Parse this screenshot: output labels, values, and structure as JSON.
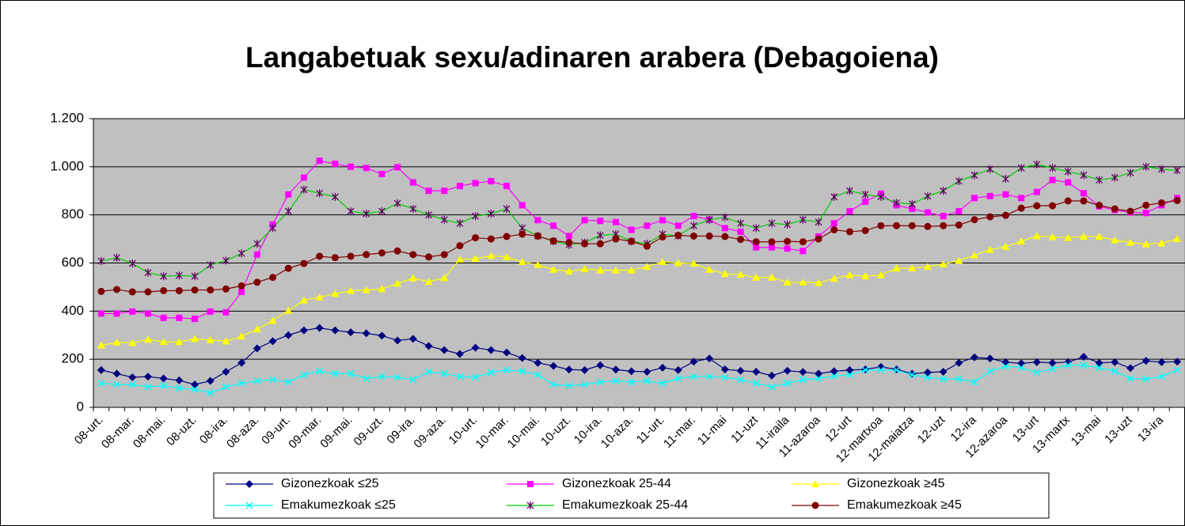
{
  "chart_data": {
    "type": "line",
    "title": "Langabetuak sexu/adinaren arabera (Debagoiena)",
    "categories": [
      "08-urt.",
      null,
      "08-mar.",
      null,
      "08-mai.",
      null,
      "08-uzt.",
      null,
      "08-ira.",
      null,
      "08-aza.",
      null,
      "09-urt.",
      null,
      "09-mar.",
      null,
      "09-mai.",
      null,
      "09-uzt.",
      null,
      "09-ira.",
      null,
      "09-aza.",
      null,
      "10-urt.",
      null,
      "10-mar.",
      null,
      "10-mai.",
      null,
      "10-uzt.",
      null,
      "10-ira.",
      null,
      "10-aza.",
      null,
      "11-urt.",
      null,
      "11-mar.",
      null,
      "11-mai",
      null,
      "11-uzt",
      null,
      "11-iraila",
      null,
      "11-azaroa",
      null,
      "12-urt",
      null,
      "12-martxoa",
      null,
      "12-maiatza",
      null,
      "12-uzt",
      null,
      "12-ira",
      null,
      "12-azaroa",
      null,
      "13-urt",
      null,
      "13-martx",
      null,
      "13-mai",
      null,
      "13-uzt",
      null,
      "13-ira",
      null
    ],
    "series": [
      {
        "name": "Gizonezkoak ≤25",
        "color": "#000080",
        "marker_color": "#000080",
        "marker": "diamond",
        "values": [
          155,
          140,
          125,
          128,
          120,
          112,
          95,
          110,
          148,
          185,
          245,
          275,
          300,
          320,
          330,
          320,
          312,
          308,
          298,
          278,
          285,
          255,
          238,
          222,
          248,
          238,
          228,
          205,
          185,
          172,
          157,
          155,
          175,
          157,
          150,
          148,
          165,
          155,
          190,
          203,
          158,
          152,
          148,
          132,
          152,
          147,
          140,
          150,
          155,
          158,
          168,
          158,
          140,
          145,
          148,
          185,
          208,
          203,
          188,
          183,
          188,
          185,
          188,
          210,
          185,
          188,
          163,
          193,
          188,
          190
        ]
      },
      {
        "name": "Gizonezkoak 25-44",
        "color": "#ff00ff",
        "marker_color": "#ff00ff",
        "marker": "square",
        "values": [
          390,
          390,
          398,
          390,
          372,
          372,
          368,
          398,
          395,
          480,
          635,
          760,
          885,
          955,
          1025,
          1012,
          1000,
          995,
          970,
          998,
          935,
          900,
          900,
          920,
          932,
          940,
          920,
          840,
          778,
          755,
          712,
          778,
          775,
          770,
          738,
          755,
          778,
          755,
          795,
          780,
          745,
          730,
          665,
          665,
          660,
          650,
          710,
          765,
          815,
          855,
          888,
          840,
          825,
          810,
          795,
          815,
          870,
          878,
          885,
          870,
          895,
          945,
          935,
          890,
          835,
          820,
          810,
          808,
          840,
          870
        ]
      },
      {
        "name": "Gizonezkoak ≥45",
        "color": "#ffff00",
        "marker_color": "#ffff00",
        "marker": "triangle",
        "values": [
          258,
          270,
          268,
          282,
          272,
          272,
          285,
          280,
          275,
          295,
          325,
          360,
          402,
          445,
          458,
          472,
          485,
          488,
          492,
          515,
          537,
          522,
          538,
          615,
          618,
          630,
          625,
          605,
          592,
          573,
          565,
          575,
          570,
          570,
          570,
          585,
          605,
          600,
          598,
          573,
          555,
          552,
          540,
          540,
          520,
          520,
          518,
          535,
          550,
          545,
          550,
          578,
          578,
          585,
          595,
          610,
          632,
          655,
          668,
          690,
          712,
          708,
          705,
          710,
          710,
          695,
          685,
          678,
          682,
          700
        ]
      },
      {
        "name": "Emakumezkoak ≤25",
        "color": "#00ffff",
        "marker_color": "#00ffff",
        "marker": "x",
        "values": [
          100,
          95,
          95,
          85,
          90,
          80,
          75,
          60,
          85,
          100,
          110,
          115,
          105,
          135,
          150,
          140,
          140,
          120,
          128,
          125,
          115,
          148,
          140,
          128,
          125,
          145,
          155,
          150,
          135,
          95,
          90,
          95,
          105,
          110,
          105,
          110,
          100,
          120,
          128,
          128,
          125,
          115,
          100,
          85,
          100,
          115,
          120,
          130,
          135,
          155,
          155,
          155,
          135,
          125,
          118,
          118,
          105,
          150,
          170,
          165,
          145,
          160,
          175,
          175,
          165,
          150,
          120,
          118,
          128,
          155
        ]
      },
      {
        "name": "Emakumezkoak 25-44",
        "color": "#00cc00",
        "marker_color": "#660066",
        "marker": "star",
        "values": [
          608,
          622,
          598,
          560,
          545,
          548,
          545,
          592,
          610,
          640,
          680,
          745,
          815,
          905,
          890,
          875,
          815,
          805,
          815,
          848,
          825,
          800,
          780,
          765,
          795,
          805,
          825,
          745,
          712,
          690,
          675,
          685,
          715,
          720,
          690,
          680,
          720,
          712,
          755,
          780,
          790,
          765,
          745,
          765,
          760,
          780,
          770,
          875,
          900,
          885,
          875,
          850,
          845,
          878,
          900,
          940,
          965,
          990,
          950,
          995,
          1010,
          995,
          980,
          965,
          945,
          955,
          975,
          1000,
          990,
          985
        ]
      },
      {
        "name": "Emakumezkoak ≥45",
        "color": "#800000",
        "marker_color": "#800000",
        "marker": "circle",
        "values": [
          482,
          490,
          480,
          480,
          485,
          485,
          488,
          488,
          492,
          505,
          520,
          540,
          578,
          598,
          628,
          622,
          628,
          635,
          642,
          650,
          635,
          625,
          635,
          672,
          705,
          700,
          710,
          720,
          712,
          692,
          685,
          680,
          680,
          700,
          690,
          670,
          708,
          715,
          712,
          712,
          710,
          698,
          688,
          688,
          690,
          688,
          700,
          738,
          730,
          735,
          755,
          755,
          755,
          752,
          755,
          758,
          780,
          792,
          798,
          828,
          838,
          838,
          858,
          858,
          840,
          825,
          815,
          840,
          850,
          860
        ]
      }
    ],
    "ylim": [
      0,
      1200
    ],
    "yticks": [
      0,
      200,
      400,
      600,
      800,
      {
        "value": 1000,
        "label": "1.000"
      },
      {
        "value": 1200,
        "label": "1.200"
      }
    ],
    "grid": true,
    "plot_background": "#c0c0c0",
    "legend": "bottom"
  }
}
